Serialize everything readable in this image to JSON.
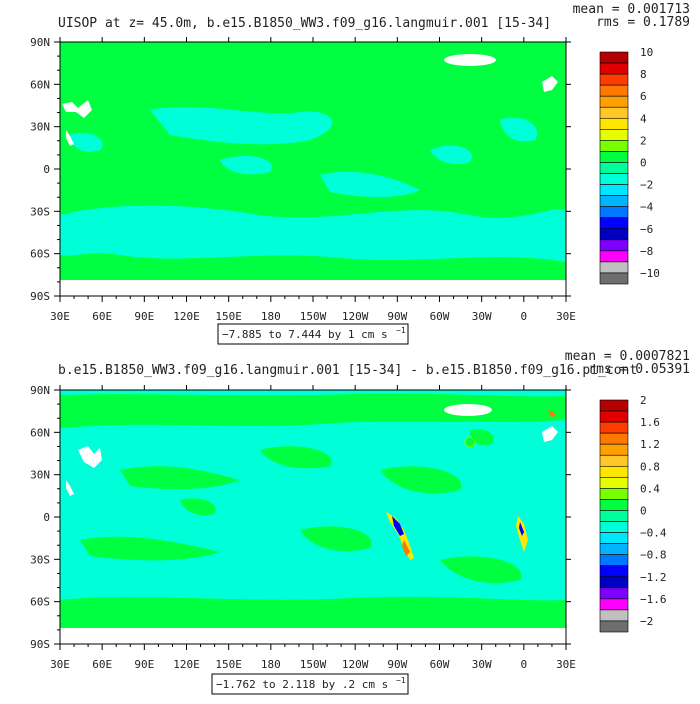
{
  "chart_data": [
    {
      "type": "heatmap",
      "title": "UISOP at z=  45.0m, b.e15.B1850_WW3.f09_g16.langmuir.001 [15-34]",
      "stats": {
        "mean": "mean = 0.001713",
        "rms": "rms = 0.1789"
      },
      "x_ticks": [
        "30E",
        "60E",
        "90E",
        "120E",
        "150E",
        "180",
        "150W",
        "120W",
        "90W",
        "60W",
        "30W",
        "0",
        "30E"
      ],
      "y_ticks": [
        "90N",
        "60N",
        "30N",
        "0",
        "30S",
        "60S",
        "90S"
      ],
      "range_label": "−7.885 to 7.444 by 1 cm s",
      "range_unit_exp": "−1",
      "colorbar": {
        "labels": [
          "10",
          "8",
          "6",
          "4",
          "2",
          "0",
          "−2",
          "−4",
          "−6",
          "−8",
          "−10"
        ],
        "colors": [
          "#b40000",
          "#e10000",
          "#ff3c00",
          "#ff7800",
          "#ffa000",
          "#ffc828",
          "#ffe600",
          "#e6ff00",
          "#78ff00",
          "#00ff40",
          "#00ff9c",
          "#00ffd8",
          "#00e6ff",
          "#00b4ff",
          "#0078ff",
          "#0000ff",
          "#0000c0",
          "#8000ff",
          "#ff00ff",
          "#c0c0c0",
          "#6e6e6e"
        ]
      },
      "dominant_values": {
        "ocean_positive": "0 to 1",
        "ocean_negative": "-1 to 0"
      }
    },
    {
      "type": "heatmap",
      "title": "b.e15.B1850_WW3.f09_g16.langmuir.001 [15-34] - b.e15.B1850.f09_g16.pi_cont",
      "stats": {
        "mean": "mean = 0.0007821",
        "rms": "rms = 0.05391"
      },
      "x_ticks": [
        "30E",
        "60E",
        "90E",
        "120E",
        "150E",
        "180",
        "150W",
        "120W",
        "90W",
        "60W",
        "30W",
        "0",
        "30E"
      ],
      "y_ticks": [
        "90N",
        "60N",
        "30N",
        "0",
        "30S",
        "60S",
        "90S"
      ],
      "range_label": "−1.762 to 2.118 by .2 cm s",
      "range_unit_exp": "−1",
      "colorbar": {
        "labels": [
          "2",
          "1.6",
          "1.2",
          "0.8",
          "0.4",
          "0",
          "−0.4",
          "−0.8",
          "−1.2",
          "−1.6",
          "−2"
        ],
        "colors": [
          "#b40000",
          "#e10000",
          "#ff3c00",
          "#ff7800",
          "#ffa000",
          "#ffc828",
          "#ffe600",
          "#e6ff00",
          "#78ff00",
          "#00ff40",
          "#00ff9c",
          "#00ffd8",
          "#00e6ff",
          "#00b4ff",
          "#0078ff",
          "#0000ff",
          "#0000c0",
          "#8000ff",
          "#ff00ff",
          "#c0c0c0",
          "#6e6e6e"
        ]
      },
      "dominant_values": {
        "ocean_positive": "0 to 0.2",
        "ocean_negative": "-0.2 to 0"
      }
    }
  ]
}
